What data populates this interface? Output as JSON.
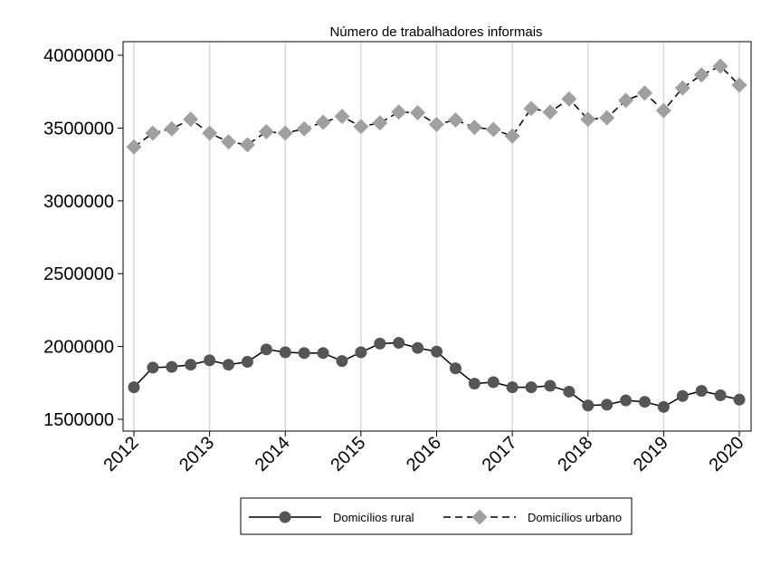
{
  "chart_data": {
    "type": "line",
    "title": "Número de trabalhadores informais",
    "xlabel": "",
    "ylabel": "",
    "xlim": [
      2012,
      2020
    ],
    "ylim": [
      1500000,
      4000000
    ],
    "x_ticks": [
      "2012",
      "2013",
      "2014",
      "2015",
      "2016",
      "2017",
      "2018",
      "2019",
      "2020"
    ],
    "y_ticks": [
      "1500000",
      "2000000",
      "2500000",
      "3000000",
      "3500000",
      "4000000"
    ],
    "grid": "vertical",
    "legend_position": "bottom",
    "x": [
      2012.0,
      2012.25,
      2012.5,
      2012.75,
      2013.0,
      2013.25,
      2013.5,
      2013.75,
      2014.0,
      2014.25,
      2014.5,
      2014.75,
      2015.0,
      2015.25,
      2015.5,
      2015.75,
      2016.0,
      2016.25,
      2016.5,
      2016.75,
      2017.0,
      2017.25,
      2017.5,
      2017.75,
      2018.0,
      2018.25,
      2018.5,
      2018.75,
      2019.0,
      2019.25,
      2019.5,
      2019.75,
      2020.0
    ],
    "series": [
      {
        "name": "Domicílios rural",
        "color": "#555555",
        "marker": "circle",
        "line_style": "solid",
        "values": [
          1720000,
          1855000,
          1860000,
          1875000,
          1905000,
          1875000,
          1895000,
          1980000,
          1960000,
          1955000,
          1955000,
          1900000,
          1960000,
          2020000,
          2025000,
          1990000,
          1965000,
          1850000,
          1745000,
          1755000,
          1720000,
          1720000,
          1730000,
          1690000,
          1595000,
          1600000,
          1630000,
          1620000,
          1585000,
          1660000,
          1695000,
          1665000,
          1635000
        ]
      },
      {
        "name": "Domicílios urbano",
        "color": "#a0a0a0",
        "marker": "diamond",
        "line_style": "dashed",
        "values": [
          3370000,
          3465000,
          3495000,
          3560000,
          3465000,
          3405000,
          3385000,
          3475000,
          3465000,
          3495000,
          3540000,
          3580000,
          3510000,
          3535000,
          3610000,
          3605000,
          3525000,
          3555000,
          3505000,
          3490000,
          3445000,
          3635000,
          3610000,
          3700000,
          3560000,
          3570000,
          3690000,
          3740000,
          3620000,
          3775000,
          3865000,
          3925000,
          3795000
        ]
      }
    ]
  }
}
